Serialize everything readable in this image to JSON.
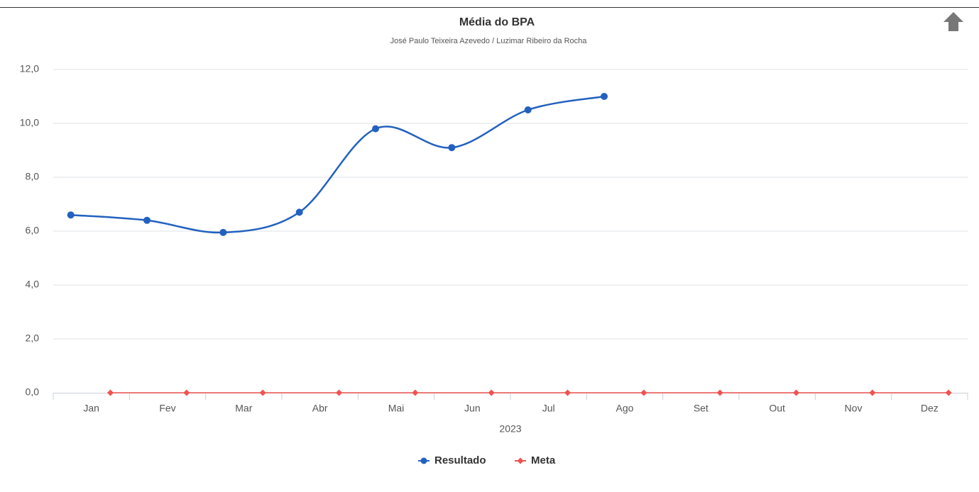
{
  "chart_data": {
    "type": "line",
    "title": "Média do BPA",
    "subtitle": "José Paulo Teixeira Azevedo / Luzimar Ribeiro da Rocha",
    "x_label": "2023",
    "categories": [
      "Jan",
      "Fev",
      "Mar",
      "Abr",
      "Mai",
      "Jun",
      "Jul",
      "Ago",
      "Set",
      "Out",
      "Nov",
      "Dez"
    ],
    "series": [
      {
        "name": "Resultado",
        "color": "#2261bf",
        "values": [
          6.6,
          6.4,
          5.95,
          6.7,
          9.8,
          9.1,
          10.5,
          11.0,
          null,
          null,
          null,
          null
        ]
      },
      {
        "name": "Meta",
        "color": "#ef5350",
        "values": [
          0,
          0,
          0,
          0,
          0,
          0,
          0,
          0,
          0,
          0,
          0,
          0
        ]
      }
    ],
    "ylim": [
      0,
      12
    ],
    "yticks": [
      {
        "value": 0,
        "label": "0,0"
      },
      {
        "value": 2,
        "label": "2,0"
      },
      {
        "value": 4,
        "label": "4,0"
      },
      {
        "value": 6,
        "label": "6,0"
      },
      {
        "value": 8,
        "label": "8,0"
      },
      {
        "value": 10,
        "label": "10,0"
      },
      {
        "value": 12,
        "label": "12,0"
      }
    ],
    "grid": true,
    "legend": "bottom"
  }
}
